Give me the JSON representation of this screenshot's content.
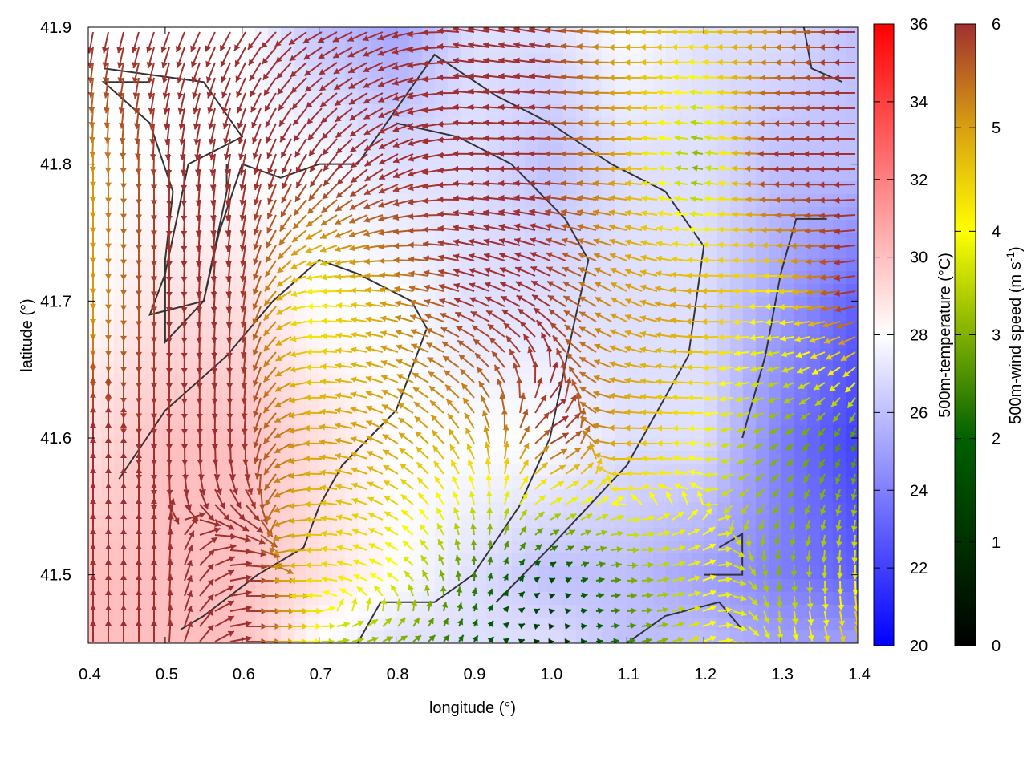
{
  "chart_data": {
    "type": "heatmap",
    "subtype": "vector field over temperature map",
    "xlabel": "longitude (°)",
    "ylabel": "latitude (°)",
    "xlim": [
      0.4,
      1.4
    ],
    "ylim": [
      41.45,
      41.9
    ],
    "xticks": [
      "0.4",
      "0.5",
      "0.6",
      "0.7",
      "0.8",
      "0.9",
      "1.0",
      "1.1",
      "1.2",
      "1.3",
      "1.4"
    ],
    "yticks": [
      "41.5",
      "41.6",
      "41.7",
      "41.8",
      "41.9"
    ],
    "grid_lon": [
      0.4,
      0.5,
      0.6,
      0.7,
      0.8,
      0.9,
      1.0,
      1.1,
      1.2,
      1.3,
      1.4
    ],
    "grid_lat": [
      41.9,
      41.8,
      41.7,
      41.6,
      41.5,
      41.45
    ],
    "temperature": [
      [
        28,
        28,
        28,
        26,
        25,
        27,
        27,
        28,
        27,
        27,
        26
      ],
      [
        28,
        28,
        28,
        28,
        27,
        27,
        26,
        27,
        27,
        26,
        26
      ],
      [
        28,
        29,
        29,
        28,
        28,
        27,
        27,
        27,
        27,
        25,
        23
      ],
      [
        29,
        30,
        30,
        29,
        28,
        28,
        28,
        27,
        27,
        24,
        22
      ],
      [
        30,
        30,
        30,
        29,
        28,
        27,
        26,
        26,
        25,
        24,
        23
      ],
      [
        30,
        30,
        30,
        28,
        27,
        27,
        27,
        26,
        26,
        25,
        25
      ]
    ],
    "wind_speed": [
      [
        6,
        6,
        6,
        6,
        6,
        6,
        6,
        5,
        4.5,
        5,
        6
      ],
      [
        5,
        6,
        6,
        6,
        6,
        6,
        6,
        5,
        3,
        6,
        6
      ],
      [
        5,
        6,
        6,
        4,
        5,
        6,
        6,
        5,
        5,
        4,
        6
      ],
      [
        6,
        6,
        6,
        5,
        5,
        5,
        6,
        5,
        4,
        3,
        2.5
      ],
      [
        6,
        6,
        6,
        4.5,
        4,
        2.5,
        1.5,
        3,
        4,
        3,
        4
      ],
      [
        6,
        6,
        6,
        3.5,
        3,
        2,
        1,
        2.5,
        4,
        4,
        5
      ]
    ],
    "wind_direction_deg": [
      [
        -100,
        -110,
        -120,
        -150,
        -160,
        170,
        170,
        180,
        180,
        180,
        180
      ],
      [
        -90,
        -90,
        -100,
        -120,
        -150,
        180,
        180,
        180,
        170,
        180,
        180
      ],
      [
        -90,
        -90,
        -95,
        180,
        170,
        160,
        150,
        150,
        180,
        180,
        190
      ],
      [
        90,
        -90,
        -90,
        180,
        150,
        120,
        30,
        180,
        180,
        -150,
        -110
      ],
      [
        90,
        90,
        0,
        180,
        150,
        90,
        30,
        0,
        20,
        -90,
        -90
      ],
      [
        90,
        90,
        0,
        0,
        30,
        60,
        0,
        10,
        20,
        -80,
        -70
      ]
    ],
    "contours": [
      [
        [
          0.42,
          41.87
        ],
        [
          0.55,
          41.86
        ],
        [
          0.6,
          41.82
        ],
        [
          0.53,
          41.8
        ],
        [
          0.5,
          41.72
        ],
        [
          0.48,
          41.69
        ],
        [
          0.55,
          41.7
        ],
        [
          0.57,
          41.75
        ],
        [
          0.6,
          41.8
        ],
        [
          0.65,
          41.79
        ],
        [
          0.7,
          41.8
        ],
        [
          0.75,
          41.8
        ],
        [
          0.8,
          41.84
        ],
        [
          0.85,
          41.88
        ],
        [
          0.93,
          41.85
        ],
        [
          1.0,
          41.83
        ],
        [
          1.08,
          41.8
        ],
        [
          1.15,
          41.78
        ],
        [
          1.2,
          41.74
        ],
        [
          1.18,
          41.66
        ],
        [
          1.1,
          41.58
        ],
        [
          1.0,
          41.52
        ],
        [
          0.93,
          41.48
        ]
      ],
      [
        [
          0.48,
          41.86
        ],
        [
          0.42,
          41.86
        ],
        [
          0.48,
          41.83
        ],
        [
          0.51,
          41.78
        ],
        [
          0.5,
          41.73
        ],
        [
          0.5,
          41.67
        ],
        [
          0.55,
          41.7
        ],
        [
          0.58,
          41.78
        ],
        [
          0.58,
          41.8
        ]
      ],
      [
        [
          0.44,
          41.57
        ],
        [
          0.5,
          41.62
        ],
        [
          0.58,
          41.66
        ],
        [
          0.64,
          41.7
        ],
        [
          0.7,
          41.73
        ],
        [
          0.75,
          41.72
        ],
        [
          0.82,
          41.7
        ],
        [
          0.84,
          41.68
        ],
        [
          0.8,
          41.62
        ],
        [
          0.73,
          41.58
        ],
        [
          0.7,
          41.55
        ],
        [
          0.68,
          41.52
        ],
        [
          0.62,
          41.5
        ],
        [
          0.55,
          41.47
        ],
        [
          0.52,
          41.46
        ]
      ],
      [
        [
          0.75,
          41.45
        ],
        [
          0.78,
          41.48
        ],
        [
          0.85,
          41.48
        ],
        [
          0.9,
          41.5
        ],
        [
          0.96,
          41.55
        ],
        [
          1.0,
          41.6
        ],
        [
          1.03,
          41.68
        ],
        [
          1.05,
          41.73
        ],
        [
          1.02,
          41.76
        ],
        [
          0.95,
          41.8
        ],
        [
          0.88,
          41.82
        ],
        [
          0.8,
          41.83
        ]
      ],
      [
        [
          1.1,
          41.45
        ],
        [
          1.15,
          41.47
        ],
        [
          1.22,
          41.48
        ],
        [
          1.25,
          41.46
        ]
      ],
      [
        [
          1.2,
          41.5
        ],
        [
          1.25,
          41.5
        ],
        [
          1.25,
          41.53
        ],
        [
          1.22,
          41.52
        ]
      ],
      [
        [
          1.25,
          41.6
        ],
        [
          1.28,
          41.66
        ],
        [
          1.3,
          41.72
        ],
        [
          1.32,
          41.76
        ],
        [
          1.36,
          41.76
        ]
      ],
      [
        [
          1.33,
          41.9
        ],
        [
          1.34,
          41.87
        ],
        [
          1.38,
          41.86
        ]
      ]
    ],
    "colorbar_temperature": {
      "label": "500m-temperature (°C)",
      "range": [
        20,
        36
      ],
      "ticks": [
        "20",
        "22",
        "24",
        "26",
        "28",
        "30",
        "32",
        "34",
        "36"
      ]
    },
    "colorbar_wind": {
      "label_main": "500m-wind speed (m s",
      "label_sup": "-1",
      "label_end": ")",
      "range": [
        0,
        6
      ],
      "ticks": [
        "0",
        "1",
        "2",
        "3",
        "4",
        "5",
        "6"
      ]
    }
  }
}
